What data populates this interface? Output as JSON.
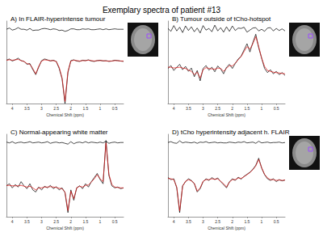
{
  "title": "Exemplary spectra of patient #13",
  "chart_data": [
    {
      "type": "line",
      "title": "A) In FLAIR-hyperintense tumour",
      "xlabel": "Chemical Shift (ppm)",
      "x": [
        4.2,
        4.1,
        4.0,
        3.9,
        3.8,
        3.7,
        3.6,
        3.5,
        3.4,
        3.3,
        3.2,
        3.1,
        3.0,
        2.9,
        2.8,
        2.7,
        2.6,
        2.5,
        2.4,
        2.3,
        2.2,
        2.1,
        2.0,
        1.9,
        1.8,
        1.7,
        1.6,
        1.5,
        1.4,
        1.3,
        1.2,
        1.1,
        1.0,
        0.9,
        0.8,
        0.7,
        0.6,
        0.5,
        0.4,
        0.3,
        0.2
      ],
      "xlim": [
        4.2,
        0.2
      ],
      "xticks": [
        4,
        3.5,
        3,
        2.5,
        2,
        1.5,
        1,
        0.5
      ],
      "ylim": [
        -10,
        10
      ],
      "tick_labels": "x",
      "series": [
        {
          "color": "#000000",
          "values": [
            0.5,
            0.8,
            0.3,
            0.6,
            1.0,
            0.4,
            0.2,
            -0.5,
            -0.3,
            -1.8,
            -3.0,
            -1.2,
            0.4,
            0.8,
            0.6,
            0.3,
            0.5,
            0.2,
            -1.5,
            -4.0,
            -10,
            -2.5,
            0.4,
            0.6,
            0.3,
            0.2,
            0.5,
            0.4,
            0.6,
            0.3,
            0.2,
            0.4,
            0.5,
            0.3,
            0.4,
            0.2,
            0.3,
            0.5,
            0.4,
            0.3,
            0.2
          ]
        },
        {
          "color": "#e01010",
          "values": [
            0.5,
            0.6,
            0.5,
            0.6,
            0.7,
            0.4,
            0.2,
            -0.3,
            -0.5,
            -1.5,
            -2.8,
            -1.0,
            0.3,
            0.6,
            0.5,
            0.4,
            0.4,
            0.2,
            -1.2,
            -3.8,
            -9.5,
            -2.2,
            0.3,
            0.5,
            0.4,
            0.3,
            0.4,
            0.4,
            0.5,
            0.4,
            0.3,
            0.4,
            0.4,
            0.4,
            0.3,
            0.3,
            0.3,
            0.4,
            0.4,
            0.3,
            0.3
          ]
        },
        {
          "color": "#000000",
          "values": [
            8.0,
            8.3,
            7.8,
            8.0,
            8.4,
            8.0,
            8.0,
            7.8,
            8.2,
            7.7,
            7.8,
            7.8,
            8.1,
            8.2,
            8.1,
            7.9,
            8.1,
            8.0,
            7.7,
            7.8,
            7.5,
            7.7,
            8.1,
            8.1,
            7.9,
            7.9,
            8.1,
            8.0,
            8.1,
            7.9,
            7.9,
            8.0,
            8.1,
            7.9,
            8.1,
            7.9,
            8.0,
            8.1,
            8.0,
            8.0,
            8.0
          ]
        }
      ]
    },
    {
      "type": "line",
      "title": "B) Tumour outside of tCho-hotspot",
      "xlabel": "Chemical Shift (ppm)",
      "x": [
        4.2,
        4.1,
        4.0,
        3.9,
        3.8,
        3.7,
        3.6,
        3.5,
        3.4,
        3.3,
        3.2,
        3.1,
        3.0,
        2.9,
        2.8,
        2.7,
        2.6,
        2.5,
        2.4,
        2.3,
        2.2,
        2.1,
        2.0,
        1.9,
        1.8,
        1.7,
        1.6,
        1.5,
        1.4,
        1.3,
        1.2,
        1.1,
        1.0,
        0.9,
        0.8,
        0.7,
        0.6,
        0.5,
        0.4,
        0.3,
        0.2
      ],
      "xlim": [
        4.2,
        0.2
      ],
      "xticks": [
        4,
        3.5,
        3,
        2.5,
        2,
        1.5,
        1,
        0.5
      ],
      "ylim": [
        -10,
        10
      ],
      "tick_labels": "x",
      "series": [
        {
          "color": "#000000",
          "values": [
            -1.5,
            -0.8,
            -2.0,
            -1.2,
            -0.5,
            -1.8,
            -1.0,
            -2.2,
            -1.4,
            -3.5,
            -2.0,
            -4.5,
            -1.5,
            -0.8,
            -1.9,
            -1.2,
            -2.3,
            -0.9,
            -1.6,
            -2.8,
            -1.2,
            -0.5,
            -1.5,
            -0.3,
            0.8,
            1.5,
            3.0,
            4.5,
            2.5,
            4.8,
            6.8,
            3.5,
            1.0,
            -1.5,
            -2.5,
            -1.8,
            -2.8,
            -2.2,
            -3.0,
            -2.5,
            -3.2
          ]
        },
        {
          "color": "#e01010",
          "values": [
            -1.2,
            -1.2,
            -1.4,
            -1.3,
            -1.2,
            -1.4,
            -1.5,
            -1.9,
            -2.2,
            -3.0,
            -2.4,
            -3.8,
            -1.8,
            -1.3,
            -1.5,
            -1.6,
            -1.7,
            -1.4,
            -1.5,
            -2.2,
            -1.5,
            -0.8,
            -0.9,
            -0.2,
            0.6,
            1.4,
            2.6,
            3.8,
            3.2,
            4.5,
            6.2,
            3.8,
            1.0,
            -1.0,
            -2.0,
            -2.2,
            -2.4,
            -2.5,
            -2.6,
            -2.7,
            -2.8
          ]
        },
        {
          "color": "#000000",
          "values": [
            8.2,
            7.5,
            8.9,
            7.6,
            8.5,
            7.2,
            8.8,
            7.7,
            8.6,
            7.4,
            8.3,
            7.1,
            8.9,
            7.8,
            8.2,
            7.4,
            9.0,
            7.6,
            8.4,
            7.3,
            8.6,
            7.5,
            8.8,
            7.7,
            8.3,
            8.2,
            8.5,
            7.3,
            7.8,
            8.3,
            8.4,
            7.6,
            8.0,
            7.5,
            8.3,
            8.4,
            7.6,
            8.2,
            7.7,
            8.1,
            7.6
          ]
        }
      ]
    },
    {
      "type": "line",
      "title": "C) Normal-appearing white matter",
      "xlabel": "Chemical Shift (ppm)",
      "x": [
        4.2,
        4.1,
        4.0,
        3.9,
        3.8,
        3.7,
        3.6,
        3.5,
        3.4,
        3.3,
        3.2,
        3.1,
        3.0,
        2.9,
        2.8,
        2.7,
        2.6,
        2.5,
        2.4,
        2.3,
        2.2,
        2.1,
        2.0,
        1.9,
        1.8,
        1.7,
        1.6,
        1.5,
        1.4,
        1.3,
        1.2,
        1.1,
        1.0,
        0.9,
        0.8,
        0.7,
        0.6,
        0.5,
        0.4,
        0.3,
        0.2
      ],
      "xlim": [
        4.2,
        0.2
      ],
      "xticks": [
        4,
        3.5,
        3,
        2.5,
        2,
        1.5,
        1,
        0.5
      ],
      "ylim": [
        -10,
        10
      ],
      "tick_labels": "x",
      "series": [
        {
          "color": "#000000",
          "values": [
            -2.5,
            -2.0,
            -3.0,
            -2.2,
            -2.8,
            -1.5,
            -2.5,
            -3.2,
            -2.0,
            -3.5,
            -4.0,
            -2.8,
            -3.5,
            -2.6,
            -3.0,
            -2.4,
            -3.2,
            -2.7,
            -3.5,
            -3.0,
            -4.2,
            -9.0,
            -3.5,
            -6.0,
            -3.0,
            -2.5,
            -3.2,
            -2.0,
            -2.8,
            -1.5,
            -0.5,
            0.5,
            -1.0,
            -2.0,
            8.5,
            0.0,
            -2.5,
            -3.0,
            -2.8,
            -3.2,
            -3.0
          ]
        },
        {
          "color": "#e01010",
          "values": [
            -2.4,
            -2.4,
            -2.5,
            -2.5,
            -2.5,
            -2.4,
            -2.6,
            -2.8,
            -2.6,
            -3.0,
            -3.5,
            -3.0,
            -3.0,
            -2.8,
            -2.8,
            -2.7,
            -2.8,
            -2.9,
            -3.1,
            -3.2,
            -4.0,
            -8.5,
            -3.8,
            -5.6,
            -3.0,
            -2.6,
            -2.8,
            -2.4,
            -2.3,
            -1.6,
            -0.8,
            0.2,
            -0.8,
            -1.5,
            7.9,
            0.3,
            -2.2,
            -2.8,
            -2.9,
            -3.0,
            -3.0
          ]
        },
        {
          "color": "#000000",
          "values": [
            8.1,
            7.9,
            8.2,
            7.8,
            8.0,
            8.1,
            7.9,
            8.0,
            8.2,
            7.9,
            8.0,
            8.1,
            7.9,
            8.0,
            8.2,
            7.8,
            8.0,
            8.1,
            7.9,
            8.0,
            7.8,
            7.6,
            8.2,
            7.7,
            8.0,
            8.1,
            7.9,
            8.2,
            7.9,
            8.1,
            8.0,
            7.9,
            8.1,
            7.9,
            8.3,
            7.8,
            8.0,
            8.1,
            7.9,
            8.0,
            8.0
          ]
        }
      ]
    },
    {
      "type": "line",
      "title": "D) tCho hyperintensity adjacent h. FLAIR",
      "xlabel": "Chemical Shift (ppm)",
      "x": [
        4.2,
        4.1,
        4.0,
        3.9,
        3.8,
        3.7,
        3.6,
        3.5,
        3.4,
        3.3,
        3.2,
        3.1,
        3.0,
        2.9,
        2.8,
        2.7,
        2.6,
        2.5,
        2.4,
        2.3,
        2.2,
        2.1,
        2.0,
        1.9,
        1.8,
        1.7,
        1.6,
        1.5,
        1.4,
        1.3,
        1.2,
        1.1,
        1.0,
        0.9,
        0.8,
        0.7,
        0.6,
        0.5,
        0.4,
        0.3,
        0.2
      ],
      "xlim": [
        4.2,
        0.2
      ],
      "xticks": [
        4,
        3.5,
        3,
        2.5,
        2,
        1.5,
        1,
        0.5
      ],
      "ylim": [
        -10,
        10
      ],
      "tick_labels": "x",
      "series": [
        {
          "color": "#000000",
          "values": [
            -0.5,
            -1.0,
            -0.8,
            -3.0,
            -9.0,
            -2.5,
            -1.5,
            -0.8,
            -1.2,
            -2.0,
            -4.0,
            -3.2,
            -1.5,
            -0.8,
            -1.2,
            -0.5,
            -1.0,
            -0.6,
            -1.5,
            -2.2,
            -3.0,
            -1.5,
            -0.8,
            -1.2,
            -0.4,
            -0.9,
            -0.2,
            0.3,
            0.8,
            1.5,
            2.5,
            4.2,
            1.8,
            0.2,
            -0.8,
            -1.2,
            -0.8,
            -1.5,
            -1.0,
            -1.3,
            -1.1
          ]
        },
        {
          "color": "#e01010",
          "values": [
            -0.7,
            -0.8,
            -1.0,
            -2.8,
            -8.6,
            -2.6,
            -1.4,
            -1.0,
            -1.3,
            -1.9,
            -3.8,
            -3.0,
            -1.4,
            -1.0,
            -1.0,
            -0.8,
            -0.9,
            -0.8,
            -1.4,
            -2.0,
            -2.8,
            -1.6,
            -1.0,
            -1.0,
            -0.6,
            -0.7,
            -0.3,
            0.2,
            0.7,
            1.4,
            2.3,
            3.9,
            1.9,
            0.3,
            -0.6,
            -1.0,
            -1.0,
            -1.2,
            -1.1,
            -1.2,
            -1.1
          ]
        },
        {
          "color": "#000000",
          "values": [
            8.0,
            8.2,
            7.9,
            7.8,
            8.4,
            7.9,
            8.1,
            8.0,
            7.9,
            8.1,
            7.8,
            8.1,
            8.0,
            8.2,
            7.9,
            8.0,
            8.1,
            7.9,
            8.0,
            7.9,
            7.9,
            8.1,
            8.0,
            7.9,
            8.1,
            8.0,
            8.2,
            7.9,
            8.0,
            8.1,
            7.8,
            8.3,
            7.9,
            8.0,
            8.1,
            7.9,
            8.0,
            8.0,
            8.1,
            7.9,
            8.0
          ]
        }
      ]
    }
  ]
}
